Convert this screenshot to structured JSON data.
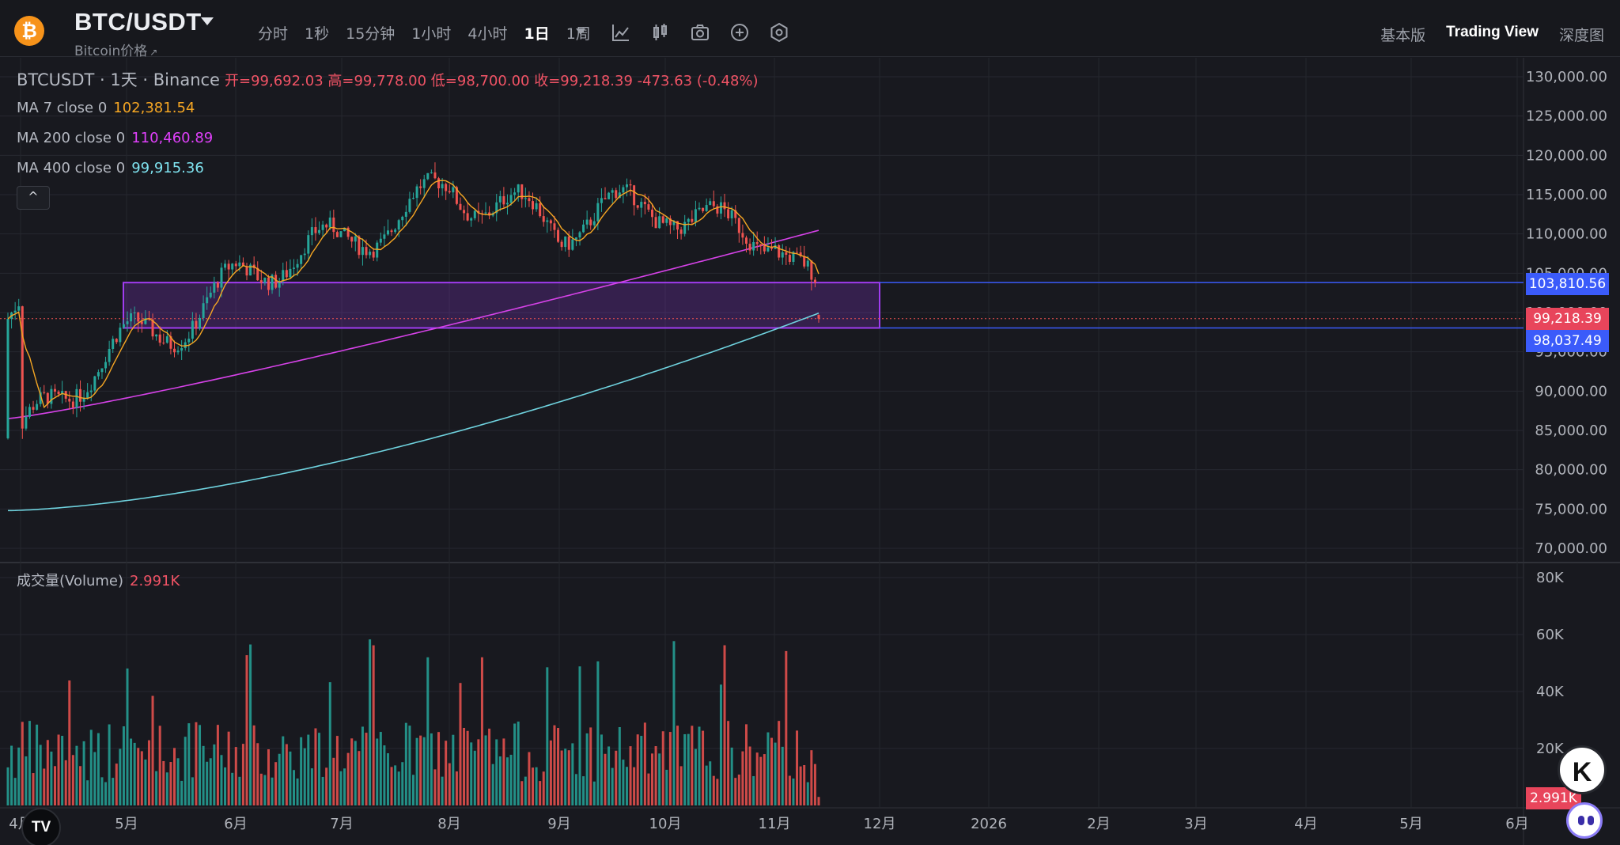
{
  "header": {
    "logo_glyph": "₿",
    "logo_color": "#f7931a",
    "pair": "BTC/USDT",
    "subtitle": "Bitcoin价格",
    "subtitle_link_glyph": "↗",
    "intervals": [
      {
        "label": "分时",
        "active": false
      },
      {
        "label": "1秒",
        "active": false
      },
      {
        "label": "15分钟",
        "active": false
      },
      {
        "label": "1小时",
        "active": false
      },
      {
        "label": "4小时",
        "active": false
      },
      {
        "label": "1日",
        "active": true
      },
      {
        "label": "1周",
        "active": false
      }
    ],
    "tools": [
      "indicator-icon",
      "candle-style-icon",
      "camera-icon",
      "add-circle-icon",
      "settings-hex-icon"
    ],
    "views": [
      {
        "label": "基本版",
        "active": false
      },
      {
        "label": "Trading View",
        "active": true
      },
      {
        "label": "深度图",
        "active": false
      }
    ]
  },
  "legend": {
    "symbol_line": "BTCUSDT · 1天 · Binance",
    "ohlc": "开=99,692.03  高=99,778.00  低=98,700.00  收=99,218.39  -473.63 (-0.48%)",
    "ma7": {
      "label": "MA 7 close 0",
      "value": "102,381.54",
      "color": "#f5a623"
    },
    "ma200": {
      "label": "MA 200 close 0",
      "value": "110,460.89",
      "color": "#e040fb"
    },
    "ma400": {
      "label": "MA 400 close 0",
      "value": "99,915.36",
      "color": "#7fe3f0"
    },
    "collapse_glyph": "^"
  },
  "volume_legend": {
    "label": "成交量(Volume)",
    "value": "2.991K"
  },
  "price_tags": {
    "upper": "103,810.56",
    "last": "99,218.39",
    "lower": "98,037.49",
    "volume": "2.991K"
  },
  "price_axis": {
    "ticks": [
      "130,000.00",
      "125,000.00",
      "120,000.00",
      "115,000.00",
      "110,000.00",
      "105,000.00",
      "100,000.00",
      "95,000.00",
      "90,000.00",
      "85,000.00",
      "80,000.00",
      "75,000.00",
      "70,000.00"
    ],
    "min": 70000,
    "max": 130000
  },
  "volume_axis": {
    "ticks": [
      "80K",
      "60K",
      "40K",
      "20K"
    ],
    "max": 80
  },
  "time_axis": [
    "4月",
    "5月",
    "6月",
    "7月",
    "8月",
    "9月",
    "10月",
    "11月",
    "12月",
    "2026",
    "2月",
    "3月",
    "4月",
    "5月",
    "6月"
  ],
  "colors": {
    "up": "#26a69a",
    "down": "#ef5350",
    "ma7": "#f5a623",
    "ma200": "#d642e8",
    "ma400": "#6fd2de",
    "box": "#a03cf0",
    "hline": "#3b5bfa"
  },
  "chart_data": {
    "type": "candlestick",
    "series": [
      {
        "name": "MA 7 close 0",
        "last": 102381.54
      },
      {
        "name": "MA 200 close 0",
        "last": 110460.89
      },
      {
        "name": "MA 400 close 0",
        "last": 99915.36
      }
    ],
    "monthly_path": [
      {
        "x": "4月",
        "close": 83000
      },
      {
        "x": "5月",
        "close": 96000
      },
      {
        "x": "6月",
        "close": 105000
      },
      {
        "x": "7月",
        "close": 107000
      },
      {
        "x": "8月",
        "close": 118000
      },
      {
        "x": "9月",
        "close": 109000
      },
      {
        "x": "10月",
        "close": 115000
      },
      {
        "x": "11月",
        "close": 109500
      },
      {
        "x": "11月中",
        "close": 99218.39
      }
    ],
    "zone": {
      "upper": 103810.56,
      "lower": 98037.49
    },
    "last_close": 99218.39,
    "ylim": [
      70000,
      130000
    ]
  }
}
